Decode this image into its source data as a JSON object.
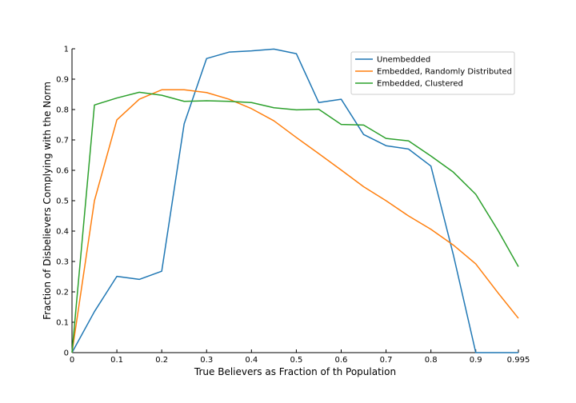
{
  "chart_data": {
    "type": "line",
    "xlabel": "True Believers as Fraction of th Population",
    "ylabel": "Fraction of Disbelievers Complying with the Norm",
    "xlim": [
      0,
      0.995
    ],
    "ylim": [
      0,
      1
    ],
    "x_ticks": [
      {
        "value": 0,
        "label": "0"
      },
      {
        "value": 0.1,
        "label": "0.1"
      },
      {
        "value": 0.2,
        "label": "0.2"
      },
      {
        "value": 0.3,
        "label": "0.3"
      },
      {
        "value": 0.4,
        "label": "0.4"
      },
      {
        "value": 0.5,
        "label": "0.5"
      },
      {
        "value": 0.6,
        "label": "0.6"
      },
      {
        "value": 0.7,
        "label": "0.7"
      },
      {
        "value": 0.8,
        "label": "0.8"
      },
      {
        "value": 0.9,
        "label": "0.9"
      },
      {
        "value": 0.995,
        "label": "0.995"
      }
    ],
    "y_ticks": [
      {
        "value": 0,
        "label": "0"
      },
      {
        "value": 0.1,
        "label": "0.1"
      },
      {
        "value": 0.2,
        "label": "0.2"
      },
      {
        "value": 0.3,
        "label": "0.3"
      },
      {
        "value": 0.4,
        "label": "0.4"
      },
      {
        "value": 0.5,
        "label": "0.5"
      },
      {
        "value": 0.6,
        "label": "0.6"
      },
      {
        "value": 0.7,
        "label": "0.7"
      },
      {
        "value": 0.8,
        "label": "0.8"
      },
      {
        "value": 0.9,
        "label": "0.9"
      },
      {
        "value": 1,
        "label": "1"
      }
    ],
    "x": [
      0,
      0.05,
      0.1,
      0.15,
      0.2,
      0.25,
      0.3,
      0.35,
      0.4,
      0.45,
      0.5,
      0.55,
      0.6,
      0.65,
      0.7,
      0.75,
      0.8,
      0.85,
      0.9,
      0.95,
      0.995
    ],
    "grid": false,
    "legend_position": "top-right",
    "series": [
      {
        "name": "Unembedded",
        "color": "#1f77b4",
        "values": [
          0.0,
          0.135,
          0.251,
          0.241,
          0.268,
          0.753,
          0.968,
          0.989,
          0.993,
          0.999,
          0.984,
          0.823,
          0.834,
          0.718,
          0.681,
          0.67,
          0.614,
          0.322,
          0.0,
          0.0,
          0.0
        ]
      },
      {
        "name": "Embedded, Randomly Distributed",
        "color": "#ff7f0e",
        "values": [
          0.0,
          0.5,
          0.766,
          0.834,
          0.865,
          0.865,
          0.856,
          0.834,
          0.803,
          0.763,
          0.708,
          0.655,
          0.601,
          0.546,
          0.5,
          0.45,
          0.406,
          0.354,
          0.292,
          0.196,
          0.113
        ]
      },
      {
        "name": "Embedded, Clustered",
        "color": "#2ca02c",
        "values": [
          0.0,
          0.815,
          0.838,
          0.857,
          0.847,
          0.827,
          0.829,
          0.827,
          0.823,
          0.806,
          0.799,
          0.801,
          0.751,
          0.749,
          0.705,
          0.697,
          0.647,
          0.594,
          0.521,
          0.401,
          0.283
        ]
      }
    ]
  }
}
